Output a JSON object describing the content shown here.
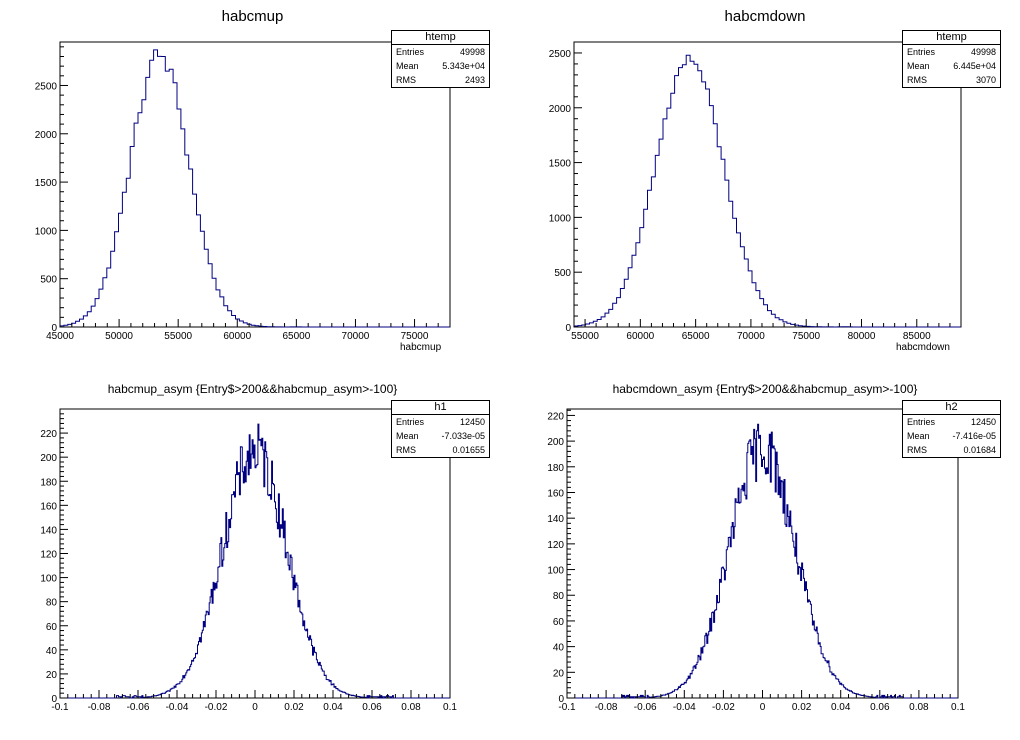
{
  "chart_data": [
    {
      "type": "histogram",
      "title": "habcmup",
      "xlabel": "habcmup",
      "ylabel": "",
      "xlim": [
        45000,
        78000
      ],
      "ylim": [
        0,
        2950
      ],
      "xticks": [
        45000,
        50000,
        55000,
        60000,
        65000,
        70000,
        75000
      ],
      "xtick_labels": [
        "45000",
        "50000",
        "55000",
        "60000",
        "65000",
        "70000",
        "75000"
      ],
      "yticks": [
        0,
        500,
        1000,
        1500,
        2000,
        2500
      ],
      "ytick_labels": [
        "0",
        "500",
        "1000",
        "1500",
        "2000",
        "2500"
      ],
      "histogram": {
        "gaussian": true,
        "mean": 53430,
        "rms": 2493,
        "entries": 49998,
        "bin_width": 330,
        "peak": 2810,
        "noise": 0.04
      },
      "stats": {
        "name": "htemp",
        "entries_label": "Entries",
        "entries": "49998",
        "mean_label": "Mean",
        "mean": "5.343e+04",
        "rms_label": "RMS",
        "rms": "2493"
      },
      "line_color": "#000080",
      "grid": false
    },
    {
      "type": "histogram",
      "title": "habcmdown",
      "xlabel": "habcmdown",
      "ylabel": "",
      "xlim": [
        54000,
        89000
      ],
      "ylim": [
        0,
        2600
      ],
      "xticks": [
        55000,
        60000,
        65000,
        70000,
        75000,
        80000,
        85000
      ],
      "xtick_labels": [
        "55000",
        "60000",
        "65000",
        "70000",
        "75000",
        "80000",
        "85000"
      ],
      "yticks": [
        0,
        500,
        1000,
        1500,
        2000,
        2500
      ],
      "ytick_labels": [
        "0",
        "500",
        "1000",
        "1500",
        "2000",
        "2500"
      ],
      "histogram": {
        "gaussian": true,
        "mean": 64450,
        "rms": 3070,
        "entries": 49998,
        "bin_width": 350,
        "peak": 2440,
        "noise": 0.03
      },
      "stats": {
        "name": "htemp",
        "entries_label": "Entries",
        "entries": "49998",
        "mean_label": "Mean",
        "mean": "6.445e+04",
        "rms_label": "RMS",
        "rms": "3070"
      },
      "line_color": "#000080",
      "grid": false
    },
    {
      "type": "histogram",
      "title": "habcmup_asym {Entry$>200&&habcmup_asym>-100}",
      "xlabel": "",
      "ylabel": "",
      "xlim": [
        -0.1,
        0.1
      ],
      "ylim": [
        0,
        240
      ],
      "xticks": [
        -0.1,
        -0.08,
        -0.06,
        -0.04,
        -0.02,
        0,
        0.02,
        0.04,
        0.06,
        0.08,
        0.1
      ],
      "xtick_labels": [
        "-0.1",
        "-0.08",
        "-0.06",
        "-0.04",
        "-0.02",
        "0",
        "0.02",
        "0.04",
        "0.06",
        "0.08",
        "0.1"
      ],
      "yticks": [
        0,
        20,
        40,
        60,
        80,
        100,
        120,
        140,
        160,
        180,
        200,
        220
      ],
      "ytick_labels": [
        "0",
        "20",
        "40",
        "60",
        "80",
        "100",
        "120",
        "140",
        "160",
        "180",
        "200",
        "220"
      ],
      "histogram": {
        "gaussian": true,
        "mean": -7e-05,
        "rms": 0.01655,
        "entries": 12450,
        "bin_width": 0.0005,
        "peak": 205,
        "noise": 0.12
      },
      "stats": {
        "name": "h1",
        "entries_label": "Entries",
        "entries": "12450",
        "mean_label": "Mean",
        "mean": "-7.033e-05",
        "rms_label": "RMS",
        "rms": "0.01655"
      },
      "line_color": "#000080",
      "grid": false
    },
    {
      "type": "histogram",
      "title": "habcmdown_asym {Entry$>200&&habcmup_asym>-100}",
      "xlabel": "",
      "ylabel": "",
      "xlim": [
        -0.1,
        0.1
      ],
      "ylim": [
        0,
        225
      ],
      "xticks": [
        -0.1,
        -0.08,
        -0.06,
        -0.04,
        -0.02,
        0,
        0.02,
        0.04,
        0.06,
        0.08,
        0.1
      ],
      "xtick_labels": [
        "-0.1",
        "-0.08",
        "-0.06",
        "-0.04",
        "-0.02",
        "0",
        "0.02",
        "0.04",
        "0.06",
        "0.08",
        "0.1"
      ],
      "yticks": [
        0,
        20,
        40,
        60,
        80,
        100,
        120,
        140,
        160,
        180,
        200,
        220
      ],
      "ytick_labels": [
        "0",
        "20",
        "40",
        "60",
        "80",
        "100",
        "120",
        "140",
        "160",
        "180",
        "200",
        "220"
      ],
      "histogram": {
        "gaussian": true,
        "mean": -7e-05,
        "rms": 0.01684,
        "entries": 12450,
        "bin_width": 0.0005,
        "peak": 195,
        "noise": 0.12
      },
      "stats": {
        "name": "h2",
        "entries_label": "Entries",
        "entries": "12450",
        "mean_label": "Mean",
        "mean": "-7.416e-05",
        "rms_label": "RMS",
        "rms": "0.01684"
      },
      "line_color": "#000080",
      "grid": false
    }
  ]
}
